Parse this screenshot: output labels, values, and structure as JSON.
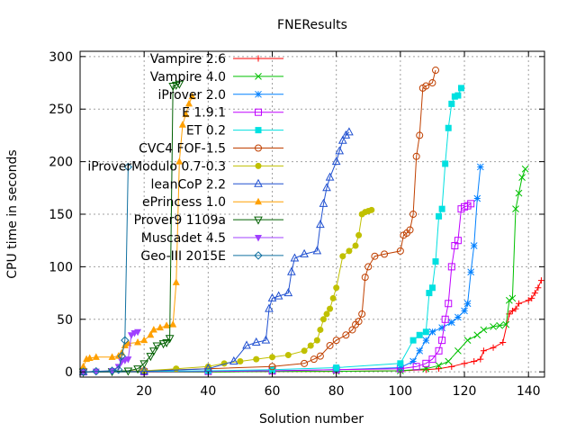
{
  "chart_data": {
    "type": "line",
    "title": "FNEResults",
    "xlabel": "Solution number",
    "ylabel": "CPU time in seconds",
    "xlim": [
      0,
      145
    ],
    "ylim": [
      -5,
      305
    ],
    "xticks": [
      20,
      40,
      60,
      80,
      100,
      120,
      140
    ],
    "yticks": [
      0,
      50,
      100,
      150,
      200,
      250,
      300
    ],
    "grid": true,
    "legend_position": "top-left",
    "series": [
      {
        "name": "Vampire 2.6",
        "color": "#ff0000",
        "marker": "plus",
        "x": [
          1,
          20,
          40,
          60,
          80,
          100,
          108,
          112,
          116,
          120,
          123,
          125,
          126,
          129,
          132,
          134,
          135,
          136,
          137,
          140,
          141,
          142,
          143,
          144
        ],
        "y": [
          0,
          0,
          0,
          0.3,
          0.5,
          1,
          2,
          3,
          5,
          8,
          10,
          12,
          20,
          23,
          28,
          55,
          58,
          60,
          65,
          68,
          70,
          75,
          80,
          87
        ]
      },
      {
        "name": "Vampire 4.0",
        "color": "#00c000",
        "marker": "cross",
        "x": [
          1,
          20,
          40,
          60,
          80,
          100,
          108,
          112,
          115,
          118,
          121,
          124,
          126,
          129,
          131,
          133,
          134,
          135,
          136,
          137,
          138,
          139
        ],
        "y": [
          0,
          0,
          0,
          0.3,
          0.5,
          1,
          3,
          6,
          10,
          20,
          30,
          35,
          40,
          43,
          44,
          45,
          68,
          70,
          155,
          170,
          185,
          193
        ]
      },
      {
        "name": "iProver 2.0",
        "color": "#0080ff",
        "marker": "star",
        "x": [
          1,
          20,
          40,
          60,
          80,
          100,
          104,
          106,
          108,
          110,
          113,
          116,
          118,
          120,
          121,
          122,
          123,
          124,
          125
        ],
        "y": [
          0,
          0.2,
          0.5,
          1,
          2,
          4,
          10,
          20,
          30,
          38,
          42,
          47,
          52,
          58,
          65,
          95,
          120,
          165,
          195
        ]
      },
      {
        "name": "E 1.9.1",
        "color": "#c000ff",
        "marker": "square",
        "x": [
          1,
          20,
          40,
          60,
          80,
          100,
          105,
          108,
          110,
          112,
          113,
          114,
          115,
          116,
          117,
          118,
          119,
          120,
          121,
          122
        ],
        "y": [
          0,
          0.2,
          0.5,
          1,
          2,
          3,
          5,
          8,
          12,
          20,
          30,
          50,
          65,
          100,
          120,
          125,
          155,
          157,
          158,
          160
        ]
      },
      {
        "name": "ET 0.2",
        "color": "#00e0e0",
        "marker": "filled-square",
        "x": [
          1,
          20,
          40,
          60,
          80,
          100,
          104,
          106,
          108,
          109,
          110,
          111,
          112,
          113,
          114,
          115,
          116,
          117,
          118,
          119
        ],
        "y": [
          0,
          0.5,
          1,
          2,
          4,
          8,
          30,
          35,
          38,
          75,
          80,
          105,
          148,
          155,
          198,
          232,
          255,
          262,
          263,
          270
        ]
      },
      {
        "name": "CVC4 FOF-1.5",
        "color": "#c04000",
        "marker": "circle",
        "x": [
          1,
          20,
          40,
          60,
          70,
          73,
          75,
          78,
          80,
          83,
          85,
          86,
          87,
          88,
          89,
          90,
          92,
          95,
          100,
          101,
          102,
          103,
          104,
          105,
          106,
          107,
          108,
          110,
          111
        ],
        "y": [
          0,
          1,
          3,
          5,
          8,
          12,
          15,
          25,
          30,
          35,
          40,
          45,
          48,
          55,
          90,
          100,
          110,
          112,
          115,
          130,
          132,
          135,
          150,
          205,
          225,
          270,
          272,
          275,
          287
        ]
      },
      {
        "name": "iProverModulo 0.7-0.3",
        "color": "#c0c000",
        "marker": "filled-circle",
        "x": [
          1,
          20,
          30,
          40,
          45,
          50,
          55,
          60,
          65,
          70,
          72,
          74,
          75,
          76,
          77,
          78,
          79,
          80,
          82,
          84,
          86,
          87,
          88,
          89,
          90,
          91
        ],
        "y": [
          0,
          1,
          3,
          5,
          8,
          10,
          12,
          14,
          16,
          20,
          25,
          30,
          40,
          50,
          55,
          60,
          70,
          80,
          110,
          115,
          120,
          130,
          150,
          152,
          153,
          154
        ]
      },
      {
        "name": "leanCoP 2.2",
        "color": "#2050d0",
        "marker": "triangle",
        "x": [
          1,
          20,
          40,
          48,
          52,
          55,
          58,
          59,
          60,
          62,
          65,
          66,
          67,
          70,
          74,
          75,
          76,
          77,
          78,
          80,
          81,
          82,
          83,
          84
        ],
        "y": [
          0,
          0.5,
          3,
          10,
          25,
          28,
          30,
          60,
          70,
          72,
          75,
          95,
          108,
          112,
          115,
          140,
          160,
          175,
          185,
          200,
          210,
          220,
          225,
          228
        ]
      },
      {
        "name": "ePrincess 1.0",
        "color": "#ffa000",
        "marker": "filled-triangle",
        "x": [
          1,
          2,
          3,
          5,
          10,
          12,
          13,
          14,
          15,
          18,
          20,
          22,
          23,
          25,
          27,
          29,
          30,
          31,
          32,
          33,
          34,
          35
        ],
        "y": [
          5,
          12,
          13,
          14,
          14,
          15,
          18,
          25,
          27,
          28,
          30,
          35,
          40,
          42,
          44,
          45,
          85,
          200,
          235,
          245,
          255,
          262
        ]
      },
      {
        "name": "Prover9 1109a",
        "color": "#006000",
        "marker": "inverted-triangle",
        "x": [
          1,
          10,
          15,
          18,
          20,
          22,
          23,
          24,
          26,
          27,
          28,
          29,
          30,
          31
        ],
        "y": [
          0,
          0.5,
          1,
          3,
          8,
          15,
          20,
          25,
          27,
          28,
          32,
          272,
          273,
          274
        ]
      },
      {
        "name": "Muscadet 4.5",
        "color": "#a040ff",
        "marker": "filled-inverted-triangle",
        "x": [
          1,
          5,
          10,
          12,
          13,
          14,
          15,
          16,
          17,
          18
        ],
        "y": [
          0,
          0.5,
          1,
          5,
          10,
          11,
          12,
          35,
          37,
          38
        ]
      },
      {
        "name": "Geo-III 2015E",
        "color": "#1070a0",
        "marker": "diamond",
        "x": [
          1,
          5,
          10,
          12,
          13,
          14,
          15
        ],
        "y": [
          0,
          0.5,
          1,
          2,
          15,
          30,
          195
        ]
      }
    ]
  }
}
